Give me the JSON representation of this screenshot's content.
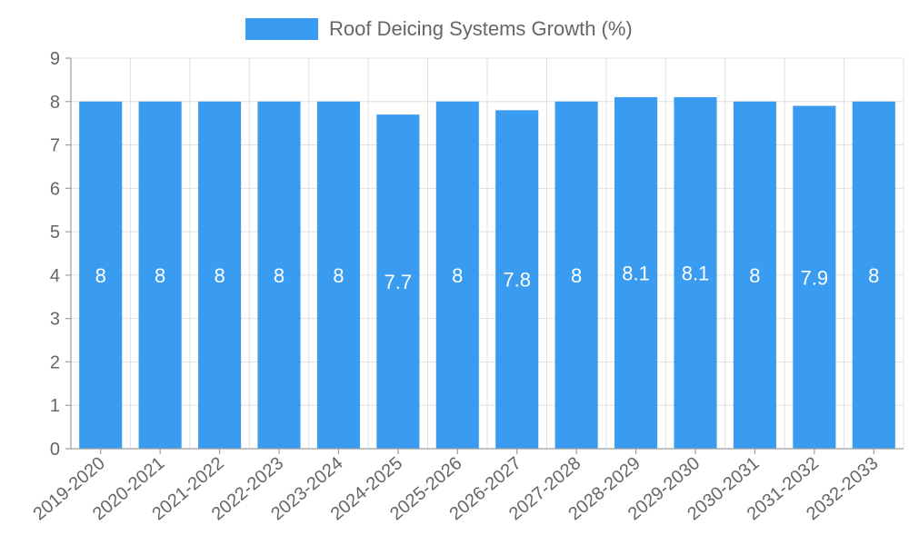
{
  "chart_data": {
    "type": "bar",
    "categories": [
      "2019-2020",
      "2020-2021",
      "2021-2022",
      "2022-2023",
      "2023-2024",
      "2024-2025",
      "2025-2026",
      "2026-2027",
      "2027-2028",
      "2028-2029",
      "2029-2030",
      "2030-2031",
      "2031-2032",
      "2032-2033"
    ],
    "series": [
      {
        "name": "Roof Deicing Systems Growth (%)",
        "values": [
          8,
          8,
          8,
          8,
          8,
          7.7,
          8,
          7.8,
          8,
          8.1,
          8.1,
          8,
          7.9,
          8
        ]
      }
    ],
    "ylim": [
      0,
      9
    ],
    "yticks": [
      0,
      1,
      2,
      3,
      4,
      5,
      6,
      7,
      8,
      9
    ],
    "grid": true,
    "legend": "top-center",
    "colors": {
      "bar": "#3a9cf0",
      "grid": "#e0e0e0",
      "axis": "#9e9e9e",
      "text": "#666666",
      "label": "#ffffff"
    }
  }
}
